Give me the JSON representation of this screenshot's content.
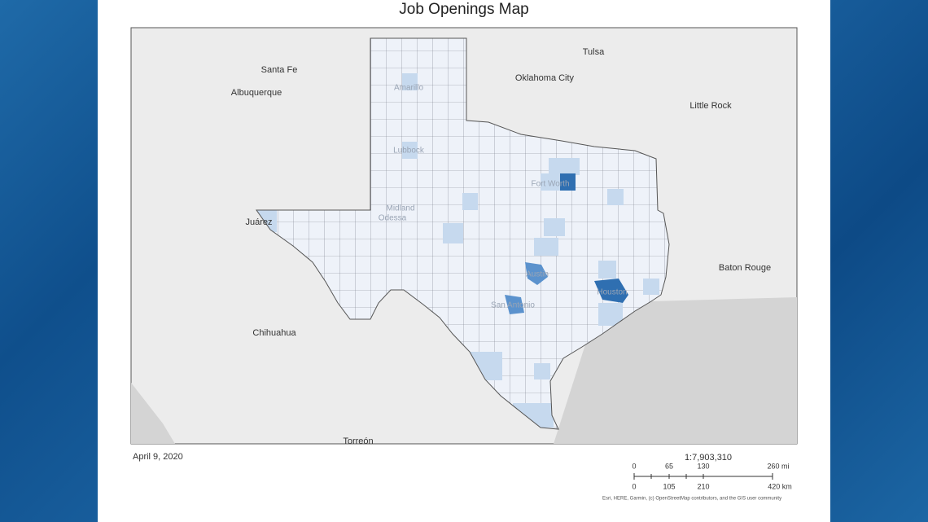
{
  "header": {
    "title": "Job Openings Map"
  },
  "places": [
    "Santa Fe",
    "Albuquerque",
    "Tulsa",
    "Oklahoma City",
    "Little Rock",
    "Baton Rouge",
    "Chihuahua",
    "Torreón",
    "Juárez",
    "Amarillo",
    "Lubbock",
    "Midland",
    "Odessa",
    "Fort Worth",
    "Austin",
    "San Antonio",
    "Houston"
  ],
  "footer": {
    "date": "April 9, 2020",
    "scale": {
      "ratio": "1:7,903,310",
      "mi_labels": [
        "0",
        "65",
        "130",
        "260 mi"
      ],
      "km_labels": [
        "0",
        "105",
        "210",
        "420 km"
      ]
    },
    "attribution": "Esri, HERE, Garmin, (c) OpenStreetMap contributors, and the GIS user community"
  }
}
